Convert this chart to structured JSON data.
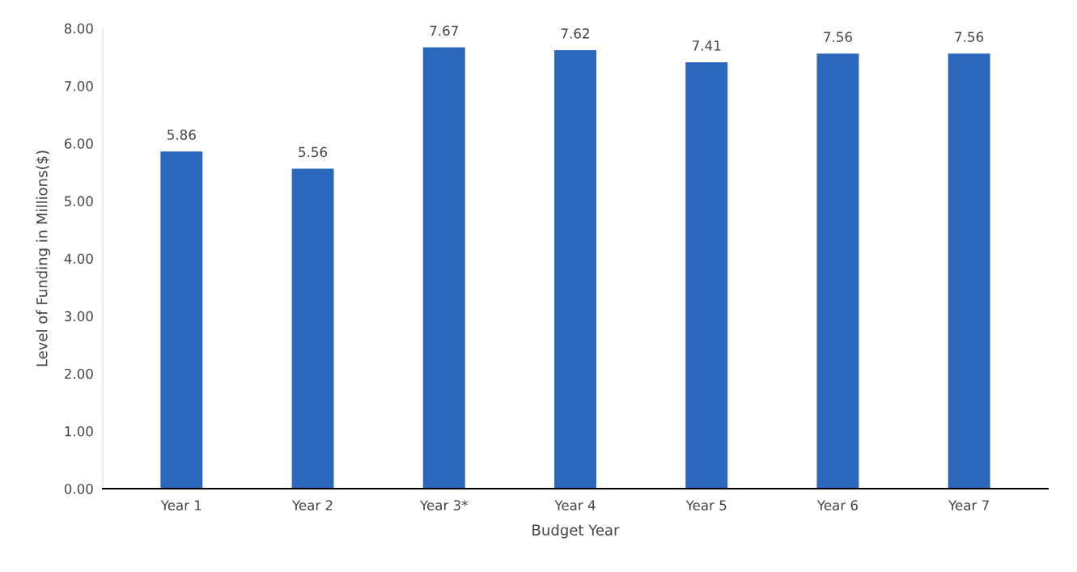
{
  "chart_data": {
    "type": "bar",
    "xlabel": "Budget Year",
    "ylabel": "Level of Funding in Millions($)",
    "categories": [
      "Year 1",
      "Year 2",
      "Year 3*",
      "Year 4",
      "Year 5",
      "Year 6",
      "Year 7"
    ],
    "values": [
      5.86,
      5.56,
      7.67,
      7.62,
      7.41,
      7.56,
      7.56
    ],
    "color": "#2a67bd",
    "ylim": [
      0,
      8
    ],
    "yticks": [
      {
        "value": 0,
        "label": "0.00"
      },
      {
        "value": 1,
        "label": "1.00"
      },
      {
        "value": 2,
        "label": "2.00"
      },
      {
        "value": 3,
        "label": "3.00"
      },
      {
        "value": 4,
        "label": "4.00"
      },
      {
        "value": 5,
        "label": "5.00"
      },
      {
        "value": 6,
        "label": "6.00"
      },
      {
        "value": 7,
        "label": "7.00"
      },
      {
        "value": 8,
        "label": "8.00"
      }
    ],
    "data_labels": true,
    "grid": false,
    "legend": false
  }
}
